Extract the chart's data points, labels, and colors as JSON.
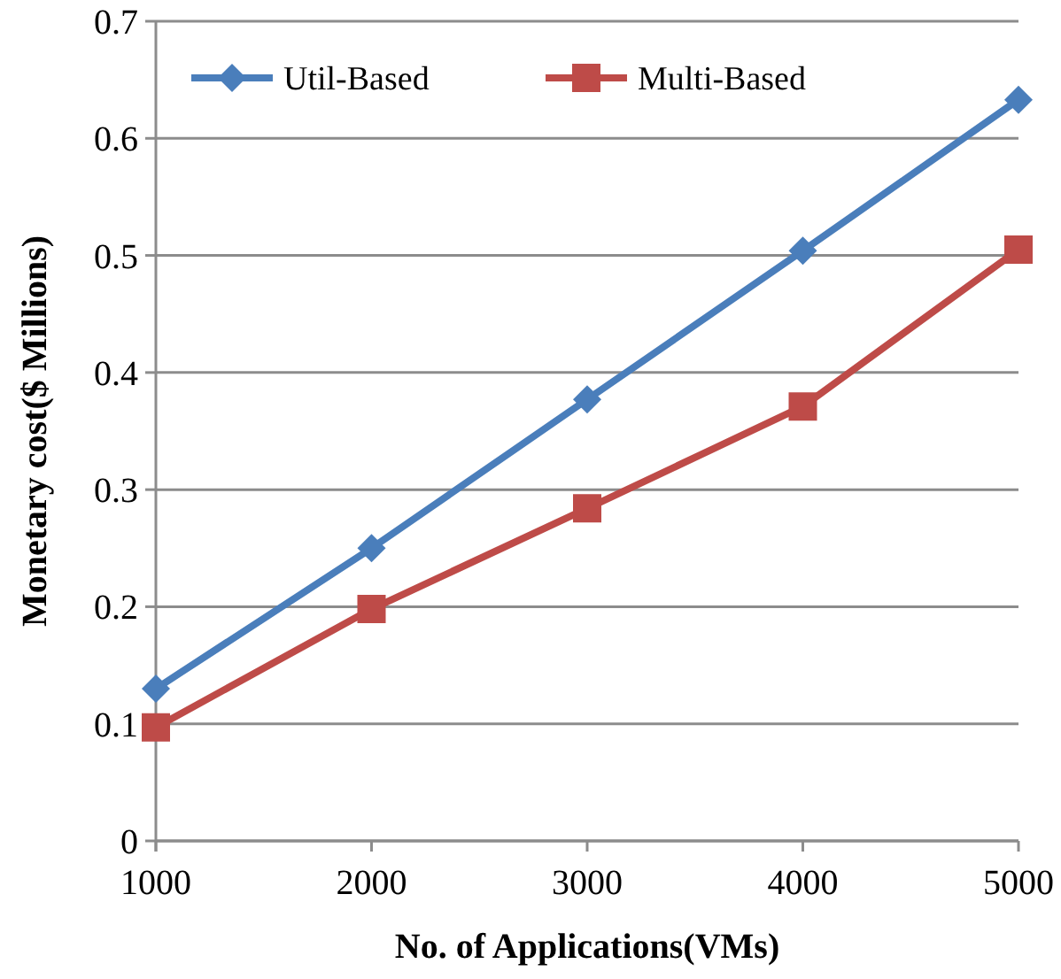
{
  "chart_data": {
    "type": "line",
    "xlabel": "No. of Applications(VMs)",
    "ylabel": "Monetary cost($ Millions)",
    "x": [
      1000,
      2000,
      3000,
      4000,
      5000
    ],
    "series": [
      {
        "name": "Util-Based",
        "color": "#4a7ebb",
        "marker": "diamond",
        "values": [
          0.13,
          0.25,
          0.377,
          0.504,
          0.633
        ]
      },
      {
        "name": "Multi-Based",
        "color": "#be4b48",
        "marker": "square",
        "values": [
          0.097,
          0.198,
          0.284,
          0.371,
          0.505
        ]
      }
    ],
    "xlim": [
      1000,
      5000
    ],
    "xticks": [
      1000,
      2000,
      3000,
      4000,
      5000
    ],
    "ylim": [
      0,
      0.7
    ],
    "yticks": [
      0,
      0.1,
      0.2,
      0.3,
      0.4,
      0.5,
      0.6,
      0.7
    ],
    "grid": "y",
    "legend": "top",
    "line_style": "solid"
  }
}
